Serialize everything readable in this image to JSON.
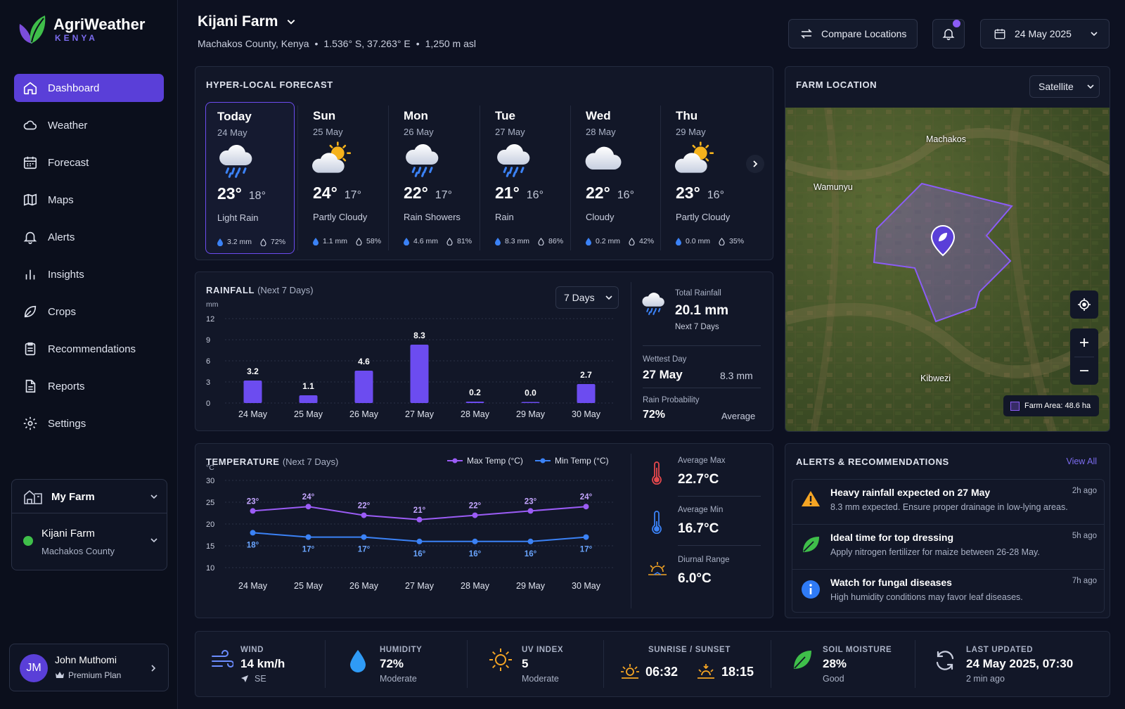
{
  "brand": {
    "name": "AgriWeather",
    "country": "KENYA"
  },
  "nav": [
    {
      "label": "Dashboard",
      "icon": "home-icon",
      "active": true
    },
    {
      "label": "Weather",
      "icon": "cloud-icon"
    },
    {
      "label": "Forecast",
      "icon": "calendar-icon"
    },
    {
      "label": "Maps",
      "icon": "map-icon"
    },
    {
      "label": "Alerts",
      "icon": "bell-icon"
    },
    {
      "label": "Insights",
      "icon": "bar-chart-icon"
    },
    {
      "label": "Crops",
      "icon": "leaf-icon"
    },
    {
      "label": "Recommendations",
      "icon": "clipboard-icon"
    },
    {
      "label": "Reports",
      "icon": "document-icon"
    },
    {
      "label": "Settings",
      "icon": "gear-icon"
    }
  ],
  "my_farm": {
    "title": "My Farm",
    "farm_name": "Kijani Farm",
    "farm_county": "Machakos County"
  },
  "user": {
    "initials": "JM",
    "name": "John Muthomi",
    "plan": "Premium Plan"
  },
  "header": {
    "farm": "Kijani Farm",
    "county": "Machakos County, Kenya",
    "coords": "1.536° S, 37.263° E",
    "altitude": "1,250 m asl",
    "compare_label": "Compare Locations",
    "date": "24 May 2025"
  },
  "forecast": {
    "title": "HYPER-LOCAL FORECAST",
    "days": [
      {
        "name": "Today",
        "date": "24 May",
        "max": "23°",
        "min": "18°",
        "cond": "Light Rain",
        "rain": "3.2 mm",
        "hum": "72%",
        "icon": "rain-cloud-icon"
      },
      {
        "name": "Sun",
        "date": "25 May",
        "max": "24°",
        "min": "17°",
        "cond": "Partly Cloudy",
        "rain": "1.1 mm",
        "hum": "58%",
        "icon": "partly-cloudy-icon"
      },
      {
        "name": "Mon",
        "date": "26 May",
        "max": "22°",
        "min": "17°",
        "cond": "Rain Showers",
        "rain": "4.6 mm",
        "hum": "81%",
        "icon": "rain-cloud-icon"
      },
      {
        "name": "Tue",
        "date": "27 May",
        "max": "21°",
        "min": "16°",
        "cond": "Rain",
        "rain": "8.3 mm",
        "hum": "86%",
        "icon": "rain-cloud-icon"
      },
      {
        "name": "Wed",
        "date": "28 May",
        "max": "22°",
        "min": "16°",
        "cond": "Cloudy",
        "rain": "0.2 mm",
        "hum": "42%",
        "icon": "cloud-icon"
      },
      {
        "name": "Thu",
        "date": "29 May",
        "max": "23°",
        "min": "16°",
        "cond": "Partly Cloudy",
        "rain": "0.0 mm",
        "hum": "35%",
        "icon": "partly-cloudy-icon"
      }
    ]
  },
  "rainfall": {
    "title": "RAINFALL",
    "subtitle": "(Next 7 Days)",
    "range": "7 Days",
    "total_label": "Total Rainfall",
    "total": "20.1 mm",
    "total_sub": "Next 7 Days",
    "wettest_label": "Wettest Day",
    "wettest_day": "27 May",
    "wettest_val": "8.3 mm",
    "prob_label": "Rain Probability",
    "prob": "72%",
    "prob_sub": "Average"
  },
  "temperature": {
    "title": "TEMPERATURE",
    "subtitle": "(Next 7 Days)",
    "avg_max_label": "Average Max",
    "avg_max": "22.7°C",
    "avg_min_label": "Average Min",
    "avg_min": "16.7°C",
    "range_label": "Diurnal Range",
    "range": "6.0°C"
  },
  "chart_data": [
    {
      "type": "bar",
      "categories": [
        "24 May",
        "25 May",
        "26 May",
        "27 May",
        "28 May",
        "29 May",
        "30 May"
      ],
      "values": [
        3.2,
        1.1,
        4.6,
        8.3,
        0.2,
        0.0,
        2.7
      ],
      "value_labels": [
        "3.2",
        "1.1",
        "4.6",
        "8.3",
        "0.2",
        "0.0",
        "2.7"
      ],
      "ylabel": "mm",
      "ylim": [
        0,
        12
      ],
      "yticks": [
        "0",
        "3",
        "6",
        "9",
        "12"
      ],
      "color": "#6c4cf0"
    },
    {
      "type": "line",
      "categories": [
        "24 May",
        "25 May",
        "26 May",
        "27 May",
        "28 May",
        "29 May",
        "30 May"
      ],
      "ylabel": "°C",
      "ylim": [
        10,
        30
      ],
      "yticks": [
        "10",
        "15",
        "20",
        "25",
        "30"
      ],
      "legend": "top-right",
      "series": [
        {
          "name": "Max Temp (°C)",
          "values": [
            23,
            24,
            22,
            21,
            22,
            23,
            24
          ],
          "labels": [
            "23°",
            "24°",
            "22°",
            "21°",
            "22°",
            "23°",
            "24°"
          ],
          "color": "#9b5cf6"
        },
        {
          "name": "Min Temp (°C)",
          "values": [
            18,
            17,
            17,
            16,
            16,
            16,
            17
          ],
          "labels": [
            "18°",
            "17°",
            "17°",
            "16°",
            "16°",
            "16°",
            "17°"
          ],
          "color": "#3b82f6"
        }
      ]
    }
  ],
  "map": {
    "title": "FARM LOCATION",
    "layer": "Satellite",
    "places": [
      "Machakos",
      "Wamunyu",
      "Kibwezi"
    ],
    "area": "Farm Area: 48.6 ha"
  },
  "alerts": {
    "title": "ALERTS & RECOMMENDATIONS",
    "view_all": "View All",
    "items": [
      {
        "title": "Heavy rainfall expected on 27 May",
        "desc": "8.3 mm expected. Ensure proper drainage in low-lying areas.",
        "time": "2h ago",
        "icon": "warning-icon"
      },
      {
        "title": "Ideal time for top dressing",
        "desc": "Apply nitrogen fertilizer for maize between 26-28 May.",
        "time": "5h ago",
        "icon": "leaf-icon"
      },
      {
        "title": "Watch for fungal diseases",
        "desc": "High humidity conditions may favor leaf diseases.",
        "time": "7h ago",
        "icon": "info-icon"
      }
    ]
  },
  "bottom": {
    "wind": {
      "label": "WIND",
      "value": "14 km/h",
      "sub": "SE"
    },
    "humidity": {
      "label": "HUMIDITY",
      "value": "72%",
      "sub": "Moderate"
    },
    "uv": {
      "label": "UV INDEX",
      "value": "5",
      "sub": "Moderate"
    },
    "sun": {
      "label": "SUNRISE / SUNSET",
      "sunrise": "06:32",
      "sunset": "18:15"
    },
    "soil": {
      "label": "SOIL MOISTURE",
      "value": "28%",
      "sub": "Good"
    },
    "updated": {
      "label": "LAST UPDATED",
      "value": "24 May 2025, 07:30",
      "sub": "2 min ago"
    }
  },
  "colors": {
    "accent": "#5a3fd8",
    "bar": "#6c4cf0",
    "max_line": "#9b5cf6",
    "min_line": "#3b82f6",
    "bg": "#0d1121"
  }
}
